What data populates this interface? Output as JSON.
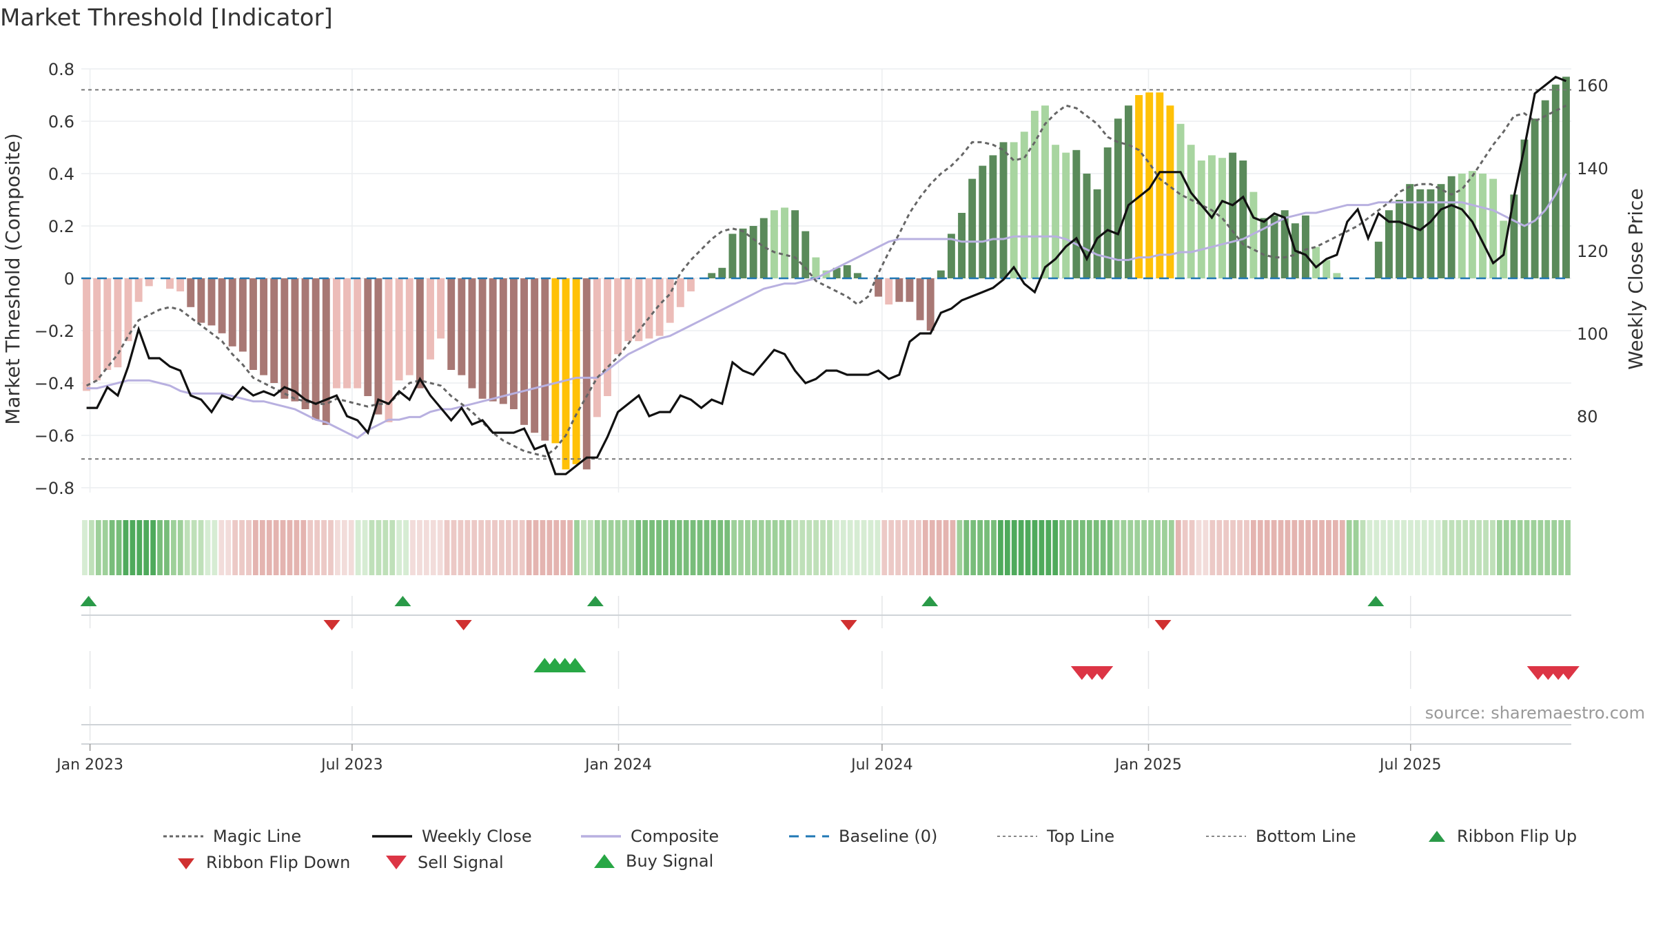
{
  "title": "Market Threshold [Indicator]",
  "watermark": "source: sharemaestro.com",
  "legend": {
    "magic_line": "Magic Line",
    "weekly_close": "Weekly Close",
    "composite": "Composite",
    "baseline": "Baseline (0)",
    "top_line": "Top Line",
    "bottom_line": "Bottom Line",
    "ribbon_flip_up": "Ribbon Flip Up",
    "ribbon_flip_down": "Ribbon Flip Down",
    "sell_signal": "Sell Signal",
    "buy_signal": "Buy Signal"
  },
  "colors": {
    "strong_pos": "#5a8a5a",
    "weak_pos": "#a8d5a0",
    "strong_neg": "#a87874",
    "weak_neg": "#ecbcb8",
    "extreme": "#ffc107",
    "close": "#111111",
    "composite": "#b8b0e0",
    "magic": "#666666",
    "baseline": "#1f77b4",
    "flip_up": "#2a9a48",
    "flip_down": "#d03030",
    "sell": "#dc3545",
    "buy": "#28a745"
  },
  "chart_data": {
    "type": "bar",
    "title": "Market Threshold [Indicator]",
    "ylabel": "Market Threshold (Composite)",
    "y2label": "Weekly Close Price",
    "ylim": [
      -0.84,
      0.84
    ],
    "y2lim": [
      62.6,
      164.0
    ],
    "yticks": [
      "0.8",
      "0.6",
      "0.4",
      "0.2",
      "0",
      "−0.2",
      "−0.4",
      "−0.6",
      "−0.8"
    ],
    "y2ticks": [
      "160",
      "140",
      "120",
      "100",
      "80"
    ],
    "xticks": [
      "Jan 2023",
      "Jul 2023",
      "Jan 2024",
      "Jul 2024",
      "Jan 2025",
      "Jul 2025"
    ],
    "x_range": [
      "2022-12-26",
      "2025-10-20"
    ],
    "top_line": 0.72,
    "bottom_line": -0.69,
    "threshold_bars": [
      -0.43,
      -0.39,
      -0.35,
      -0.34,
      -0.24,
      -0.09,
      -0.03,
      0.0,
      -0.04,
      -0.05,
      -0.11,
      -0.17,
      -0.18,
      -0.21,
      -0.26,
      -0.28,
      -0.35,
      -0.37,
      -0.4,
      -0.46,
      -0.47,
      -0.5,
      -0.54,
      -0.56,
      -0.42,
      -0.42,
      -0.42,
      -0.45,
      -0.52,
      -0.55,
      -0.39,
      -0.37,
      -0.42,
      -0.31,
      -0.23,
      -0.35,
      -0.37,
      -0.42,
      -0.46,
      -0.47,
      -0.48,
      -0.5,
      -0.56,
      -0.59,
      -0.62,
      -0.63,
      -0.73,
      -0.71,
      -0.73,
      -0.53,
      -0.45,
      -0.29,
      -0.24,
      -0.24,
      -0.23,
      -0.22,
      -0.17,
      -0.11,
      -0.05,
      0.0,
      0.02,
      0.04,
      0.17,
      0.19,
      0.2,
      0.23,
      0.26,
      0.27,
      0.26,
      0.18,
      0.08,
      0.03,
      0.04,
      0.05,
      0.02,
      0.0,
      -0.07,
      -0.1,
      -0.09,
      -0.09,
      -0.16,
      -0.2,
      0.03,
      0.17,
      0.25,
      0.38,
      0.43,
      0.47,
      0.52,
      0.52,
      0.56,
      0.64,
      0.66,
      0.51,
      0.48,
      0.49,
      0.4,
      0.34,
      0.5,
      0.61,
      0.66,
      0.7,
      0.71,
      0.71,
      0.66,
      0.59,
      0.51,
      0.45,
      0.47,
      0.46,
      0.48,
      0.45,
      0.33,
      0.23,
      0.24,
      0.26,
      0.21,
      0.24,
      0.12,
      0.07,
      0.02,
      0.0,
      0.0,
      0.0,
      0.14,
      0.26,
      0.3,
      0.36,
      0.34,
      0.34,
      0.36,
      0.39,
      0.4,
      0.41,
      0.4,
      0.38,
      0.22,
      0.32,
      0.53,
      0.61,
      0.68,
      0.74,
      0.77
    ],
    "bar_classes": "WWWWWWWWWWSSSSSSSSSSSSSSWWWSSWWWSWWSSSSSSSSSSXXXSWWWWWWWWWWWSSSSSSWWSSWWSSSSSWSSSSSSSSSSSWWWWWWSSSSSSXXXXWWWWWSSWSSSSSWWWWSSSSSSSSSSWWWWWSSSSSSXXX",
    "weekly_close": [
      82.0,
      82.0,
      87.0,
      85.0,
      92.0,
      101.0,
      94.0,
      94.0,
      92.0,
      91.0,
      85.0,
      84.0,
      81.0,
      85.0,
      84.0,
      87.0,
      85.0,
      86.0,
      85.0,
      87.0,
      86.0,
      84.0,
      83.0,
      84.0,
      85.0,
      80.0,
      79.0,
      76.0,
      84.0,
      83.0,
      86.0,
      84.0,
      89.0,
      85.0,
      82.0,
      79.0,
      82.0,
      78.0,
      79.0,
      76.0,
      76.0,
      76.0,
      77.0,
      72.0,
      73.0,
      66.0,
      66.0,
      68.0,
      70.0,
      70.0,
      75.0,
      81.0,
      83.0,
      85.0,
      80.0,
      81.0,
      81.0,
      85.0,
      84.0,
      82.0,
      84.0,
      83.0,
      93.0,
      91.0,
      90.0,
      93.0,
      96.0,
      95.0,
      91.0,
      88.0,
      89.0,
      91.0,
      91.0,
      90.0,
      90.0,
      90.0,
      91.0,
      89.0,
      90.0,
      98.0,
      100.0,
      100.0,
      105.0,
      106.0,
      108.0,
      109.0,
      110.0,
      111.0,
      113.0,
      116.0,
      112.0,
      110.0,
      116.0,
      118.0,
      121.0,
      123.0,
      118.0,
      123.0,
      125.0,
      124.0,
      131.0,
      133.0,
      135.0,
      139.0,
      139.0,
      139.0,
      134.0,
      131.0,
      128.0,
      132.0,
      131.0,
      133.0,
      128.0,
      127.0,
      129.0,
      128.0,
      120.0,
      119.0,
      116.0,
      118.0,
      119.0,
      127.0,
      130.0,
      123.0,
      129.0,
      127.0,
      127.0,
      126.0,
      125.0,
      127.0,
      130.0,
      131.0,
      130.0,
      127.0,
      122.0,
      117.0,
      119.0,
      133.0,
      145.0,
      158.0,
      160.0,
      162.0,
      161.0
    ],
    "composite": [
      -0.42,
      -0.42,
      -0.41,
      -0.4,
      -0.39,
      -0.39,
      -0.39,
      -0.4,
      -0.41,
      -0.43,
      -0.44,
      -0.44,
      -0.44,
      -0.44,
      -0.45,
      -0.46,
      -0.47,
      -0.47,
      -0.48,
      -0.49,
      -0.5,
      -0.52,
      -0.54,
      -0.55,
      -0.57,
      -0.59,
      -0.61,
      -0.58,
      -0.56,
      -0.54,
      -0.54,
      -0.53,
      -0.53,
      -0.51,
      -0.5,
      -0.5,
      -0.49,
      -0.48,
      -0.47,
      -0.46,
      -0.45,
      -0.44,
      -0.43,
      -0.42,
      -0.41,
      -0.4,
      -0.39,
      -0.38,
      -0.38,
      -0.38,
      -0.35,
      -0.32,
      -0.29,
      -0.27,
      -0.25,
      -0.23,
      -0.22,
      -0.2,
      -0.18,
      -0.16,
      -0.14,
      -0.12,
      -0.1,
      -0.08,
      -0.06,
      -0.04,
      -0.03,
      -0.02,
      -0.02,
      -0.01,
      0.0,
      0.02,
      0.04,
      0.06,
      0.08,
      0.1,
      0.12,
      0.14,
      0.15,
      0.15,
      0.15,
      0.15,
      0.15,
      0.15,
      0.14,
      0.14,
      0.14,
      0.15,
      0.15,
      0.16,
      0.16,
      0.16,
      0.16,
      0.16,
      0.15,
      0.13,
      0.11,
      0.09,
      0.08,
      0.07,
      0.07,
      0.08,
      0.08,
      0.09,
      0.09,
      0.1,
      0.1,
      0.11,
      0.12,
      0.13,
      0.14,
      0.15,
      0.17,
      0.19,
      0.21,
      0.23,
      0.24,
      0.25,
      0.25,
      0.26,
      0.27,
      0.28,
      0.28,
      0.28,
      0.29,
      0.29,
      0.29,
      0.29,
      0.29,
      0.29,
      0.29,
      0.29,
      0.29,
      0.28,
      0.27,
      0.26,
      0.24,
      0.22,
      0.2,
      0.22,
      0.26,
      0.32,
      0.4
    ],
    "magic_line": [
      -0.41,
      -0.39,
      -0.34,
      -0.29,
      -0.22,
      -0.16,
      -0.14,
      -0.12,
      -0.11,
      -0.12,
      -0.15,
      -0.18,
      -0.21,
      -0.24,
      -0.29,
      -0.33,
      -0.38,
      -0.4,
      -0.42,
      -0.44,
      -0.46,
      -0.47,
      -0.48,
      -0.48,
      -0.46,
      -0.47,
      -0.48,
      -0.49,
      -0.48,
      -0.48,
      -0.44,
      -0.4,
      -0.39,
      -0.4,
      -0.41,
      -0.45,
      -0.48,
      -0.51,
      -0.55,
      -0.59,
      -0.62,
      -0.64,
      -0.66,
      -0.67,
      -0.68,
      -0.65,
      -0.6,
      -0.52,
      -0.45,
      -0.38,
      -0.34,
      -0.3,
      -0.25,
      -0.2,
      -0.15,
      -0.1,
      -0.06,
      0.02,
      0.07,
      0.11,
      0.15,
      0.18,
      0.19,
      0.18,
      0.15,
      0.12,
      0.1,
      0.09,
      0.08,
      0.04,
      -0.01,
      -0.03,
      -0.05,
      -0.07,
      -0.1,
      -0.07,
      0.02,
      0.1,
      0.17,
      0.25,
      0.31,
      0.36,
      0.4,
      0.43,
      0.47,
      0.52,
      0.52,
      0.51,
      0.49,
      0.45,
      0.46,
      0.52,
      0.59,
      0.63,
      0.66,
      0.65,
      0.62,
      0.59,
      0.54,
      0.52,
      0.51,
      0.49,
      0.44,
      0.38,
      0.35,
      0.32,
      0.3,
      0.28,
      0.26,
      0.23,
      0.18,
      0.13,
      0.11,
      0.09,
      0.08,
      0.08,
      0.09,
      0.11,
      0.12,
      0.14,
      0.16,
      0.18,
      0.2,
      0.23,
      0.26,
      0.29,
      0.33,
      0.35,
      0.36,
      0.36,
      0.34,
      0.32,
      0.34,
      0.39,
      0.45,
      0.51,
      0.56,
      0.62,
      0.63,
      0.6,
      0.62,
      0.64,
      0.66
    ],
    "ribbon": "GGGGGGGGGGGGGGGGGGGGRRRRRRRRRRRRRRRRRRRRGGGGGGGGRRRRRRRRRRRRRRRRRRRRRRRRGGGGGGGGGGGGGGGGGGGGGGGGGGGGGGGGGGGGGGGGGGGGGRRRRRRRRRRRGGGGGGGGGGGGGGGGGGGGGGGGGGGGGGGGRRRRRRRRRRRRRRRRRRRRRRRRRGGGGGGGGGGGGGGGGGGGGGGGGGGGGGGGGG",
    "ribbon_intensity": [
      1,
      2,
      3,
      3,
      4,
      4,
      5,
      5,
      5,
      5,
      5,
      4,
      4,
      3,
      3,
      2,
      2,
      2,
      1,
      1,
      1,
      1,
      2,
      2,
      2,
      3,
      3,
      3,
      3,
      3,
      3,
      3,
      3,
      2,
      2,
      2,
      2,
      1,
      1,
      1,
      1,
      1,
      2,
      2,
      2,
      2,
      1,
      1,
      1,
      1,
      1,
      1,
      1,
      2,
      2,
      2,
      2,
      2,
      2,
      2,
      2,
      2,
      2,
      2,
      2,
      3,
      3,
      3,
      3,
      3,
      3,
      3,
      3,
      2,
      2,
      3,
      3,
      3,
      3,
      3,
      3,
      4,
      4,
      4,
      4,
      4,
      4,
      4,
      4,
      4,
      4,
      4,
      4,
      4,
      4,
      3,
      3,
      3,
      3,
      3,
      3,
      3,
      3,
      3,
      2,
      2,
      2,
      2,
      2,
      2,
      1,
      1,
      1,
      1,
      1,
      1,
      1,
      2,
      2,
      2,
      2,
      2,
      2,
      3,
      3,
      3,
      3,
      3,
      3,
      4,
      4,
      4,
      4,
      4,
      5,
      5,
      5,
      5,
      5,
      5,
      5,
      5,
      5,
      4,
      4,
      4,
      4,
      4,
      4,
      4,
      4,
      3,
      3,
      3,
      3,
      3,
      3,
      3,
      3,
      3,
      3,
      2,
      2,
      1,
      1,
      2,
      2,
      2,
      2,
      2,
      2,
      3,
      3,
      3,
      3,
      3,
      3,
      3,
      3,
      3,
      3,
      3,
      3,
      3,
      3,
      3,
      3,
      2,
      1,
      1,
      1,
      1,
      1,
      1,
      1,
      1,
      1,
      1,
      1,
      2,
      2,
      2,
      2,
      2,
      2,
      2,
      2,
      3,
      3,
      3,
      3,
      3,
      3,
      3,
      3,
      3,
      3,
      3,
      3,
      3
    ],
    "ribbon_flip_up": [
      "2022-12-31",
      "2023-08-05",
      "2023-12-16",
      "2024-08-03",
      "2025-06-07"
    ],
    "ribbon_flip_down": [
      "2023-06-17",
      "2023-09-16",
      "2024-06-08",
      "2025-01-11"
    ],
    "buy_signal": [
      "2023-11-11",
      "2023-11-18",
      "2023-11-25",
      "2023-12-02"
    ],
    "sell_signal": [
      "2024-11-16",
      "2024-11-23",
      "2024-11-30",
      "2025-09-27",
      "2025-10-04",
      "2025-10-11",
      "2025-10-18"
    ]
  }
}
